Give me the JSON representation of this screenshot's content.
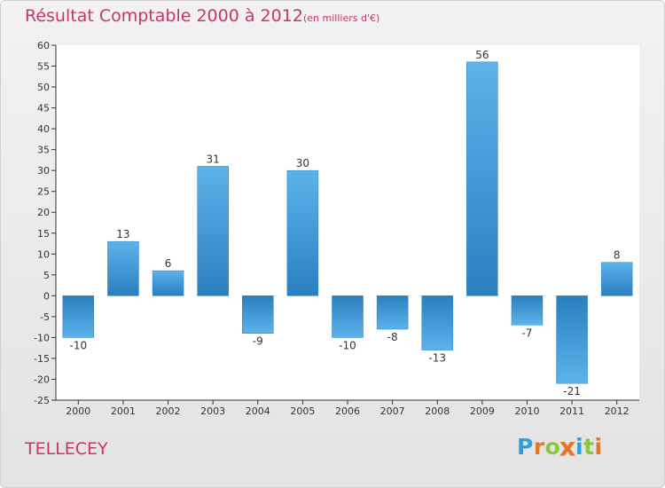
{
  "title": "Résultat Comptable 2000 à 2012",
  "subtitle": "(en milliers d'€)",
  "commune": "TELLECEY",
  "logo": {
    "letters": [
      "P",
      "r",
      "o",
      "x",
      "i",
      "t",
      "i"
    ],
    "colors": [
      "#2f9fdc",
      "#e8742a",
      "#8cc63f",
      "#e8742a",
      "#2f9fdc",
      "#8cc63f",
      "#e8742a"
    ]
  },
  "colors": {
    "title": "#cc3366",
    "bar_light": "#5cb3ea",
    "bar_dark": "#2a7fbf"
  },
  "chart_data": {
    "type": "bar",
    "title": "Résultat Comptable 2000 à 2012",
    "subtitle": "(en milliers d'€)",
    "categories": [
      "2000",
      "2001",
      "2002",
      "2003",
      "2004",
      "2005",
      "2006",
      "2007",
      "2008",
      "2009",
      "2010",
      "2011",
      "2012"
    ],
    "values": [
      -10,
      13,
      6,
      31,
      -9,
      30,
      -10,
      -8,
      -13,
      56,
      -7,
      -21,
      8
    ],
    "ylim": [
      -25,
      60
    ],
    "yticks": [
      -25,
      -20,
      -15,
      -10,
      -5,
      0,
      5,
      10,
      15,
      20,
      25,
      30,
      35,
      40,
      45,
      50,
      55,
      60
    ],
    "grid": false,
    "legend": "none"
  }
}
